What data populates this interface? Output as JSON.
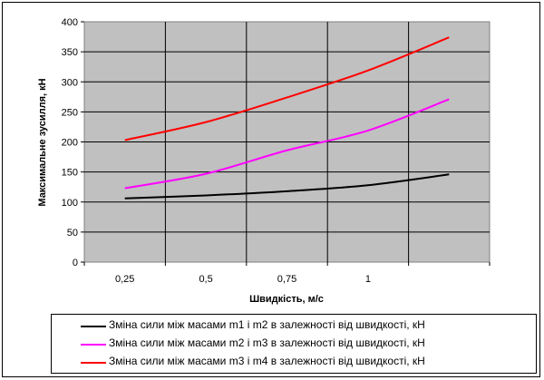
{
  "chart_data": {
    "type": "line",
    "xlabel": "Швидкість, м/с",
    "ylabel": "Максимальне зусилля, кН",
    "categories": [
      "0,25",
      "0,5",
      "0,75",
      "1",
      ""
    ],
    "x": [
      0.25,
      0.5,
      0.75,
      1.0,
      1.25
    ],
    "ylim": [
      0,
      400
    ],
    "yticks": [
      0,
      50,
      100,
      150,
      200,
      250,
      300,
      350,
      400
    ],
    "grid": true,
    "plot_background": "#c0c0c0",
    "legend_position": "bottom",
    "series": [
      {
        "name": "Зміна сили між масами m1 і m2  в залежності від швидкості, кН",
        "color": "#000000",
        "values": [
          106,
          111,
          118,
          128,
          146
        ]
      },
      {
        "name": "Зміна сили між масами m2 і m3  в залежності від швидкості, кН",
        "color": "#ff00ff",
        "values": [
          123,
          147,
          186,
          219,
          271
        ]
      },
      {
        "name": "Зміна сили між масами m3 і m4  в залежності від швидкості, кН",
        "color": "#ff0000",
        "values": [
          203,
          233,
          274,
          319,
          374
        ]
      }
    ]
  }
}
